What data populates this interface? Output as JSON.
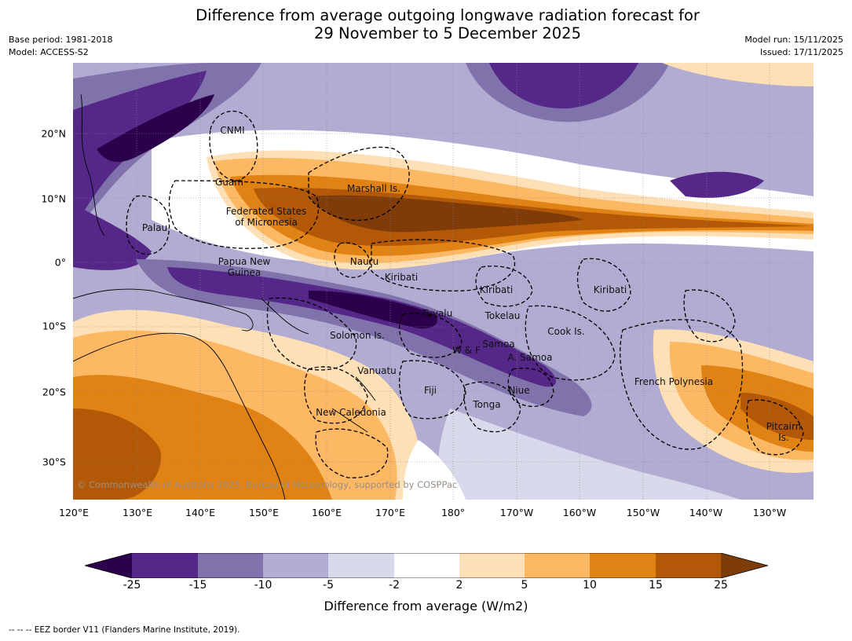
{
  "title": {
    "line1": "Difference from average outgoing longwave radiation forecast for",
    "line2": "29 November to 5 December 2025"
  },
  "meta": {
    "base_period": "Base period: 1981-2018",
    "model": "Model: ACCESS-S2",
    "model_run": "Model run: 15/11/2025",
    "issued": "Issued: 17/11/2025"
  },
  "map": {
    "lon_labels": [
      "120°E",
      "130°E",
      "140°E",
      "150°E",
      "160°E",
      "170°E",
      "180°",
      "170°W",
      "160°W",
      "150°W",
      "140°W",
      "130°W"
    ],
    "lat_labels": [
      "20°N",
      "10°N",
      "0°",
      "10°S",
      "20°S",
      "30°S"
    ],
    "places": [
      {
        "name": "CNMI"
      },
      {
        "name": "Guam"
      },
      {
        "name": "Marshall Is."
      },
      {
        "name": "Federated States\nof Micronesia"
      },
      {
        "name": "Palau"
      },
      {
        "name": "Papua New\nGuinea"
      },
      {
        "name": "Nauru"
      },
      {
        "name": "Kiribati"
      },
      {
        "name": "Kiribati"
      },
      {
        "name": "Kiribati"
      },
      {
        "name": "Tuvalu"
      },
      {
        "name": "Tokelau"
      },
      {
        "name": "Cook Is."
      },
      {
        "name": "Solomon Is."
      },
      {
        "name": "W & F"
      },
      {
        "name": "Samoa"
      },
      {
        "name": "A. Samoa"
      },
      {
        "name": "Vanuatu"
      },
      {
        "name": "Fiji"
      },
      {
        "name": "Niue"
      },
      {
        "name": "French Polynesia"
      },
      {
        "name": "Tonga"
      },
      {
        "name": "New Caledonia"
      },
      {
        "name": "Pitcairn\nIs."
      }
    ],
    "copyright": "© Commonwealth of Australia 2025, Bureau of Meteorology, supported by COSPPac"
  },
  "colorbar": {
    "ticks": [
      "-25",
      "-15",
      "-10",
      "-5",
      "-2",
      "2",
      "5",
      "10",
      "15",
      "25"
    ],
    "colors": {
      "below_min": "#2d004b",
      "c1": "#542788",
      "c2": "#8073ac",
      "c3": "#b2abd2",
      "c4": "#d8daeb",
      "c5": "#ffffff",
      "c6": "#fee0b6",
      "c7": "#fdb863",
      "c8": "#e08214",
      "c9": "#b35806",
      "above_max": "#7f3b08"
    },
    "label": "Difference from average (W/m2)"
  },
  "footnote": "--  --  -- EEZ border V11 (Flanders Marine Institute, 2019)."
}
